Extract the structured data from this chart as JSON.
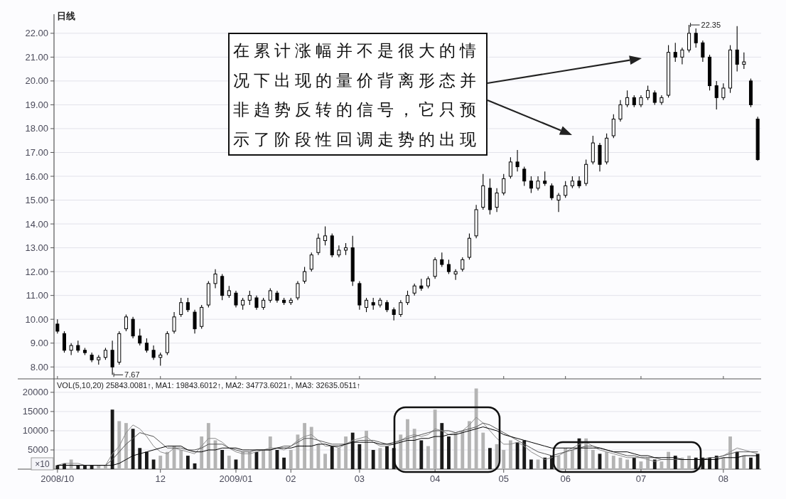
{
  "chart_data": [
    {
      "type": "candlestick",
      "title": "日线",
      "color": "#000000",
      "categories": [
        "2008/10",
        null,
        null,
        null,
        null,
        null,
        null,
        null,
        null,
        null,
        null,
        null,
        null,
        null,
        null,
        "12",
        null,
        null,
        null,
        null,
        null,
        null,
        null,
        null,
        null,
        null,
        "2009/01",
        null,
        null,
        null,
        null,
        null,
        null,
        null,
        "02",
        null,
        null,
        null,
        null,
        null,
        null,
        null,
        null,
        null,
        "03",
        null,
        null,
        null,
        null,
        null,
        null,
        null,
        null,
        null,
        null,
        "04",
        null,
        null,
        null,
        null,
        null,
        null,
        null,
        null,
        null,
        "05",
        null,
        null,
        null,
        null,
        null,
        null,
        null,
        null,
        "06",
        null,
        null,
        null,
        null,
        null,
        null,
        null,
        null,
        null,
        null,
        "07",
        null,
        null,
        null,
        null,
        null,
        null,
        null,
        null,
        null,
        null,
        null,
        "08",
        null,
        null,
        null,
        null,
        null
      ],
      "ohlc": [
        [
          9.8,
          10.0,
          9.4,
          9.5
        ],
        [
          9.4,
          9.5,
          8.6,
          8.7
        ],
        [
          8.7,
          9.0,
          8.5,
          8.9
        ],
        [
          8.9,
          9.1,
          8.6,
          8.7
        ],
        [
          8.7,
          8.8,
          8.5,
          8.6
        ],
        [
          8.5,
          8.6,
          8.2,
          8.3
        ],
        [
          8.3,
          8.5,
          8.1,
          8.4
        ],
        [
          8.4,
          8.8,
          8.3,
          8.7
        ],
        [
          8.7,
          9.1,
          7.67,
          8.0
        ],
        [
          8.2,
          9.5,
          8.1,
          9.4
        ],
        [
          9.6,
          10.2,
          9.5,
          10.1
        ],
        [
          10.0,
          10.1,
          9.2,
          9.3
        ],
        [
          9.3,
          9.6,
          8.9,
          9.0
        ],
        [
          9.0,
          9.2,
          8.6,
          8.7
        ],
        [
          8.7,
          8.9,
          8.3,
          8.4
        ],
        [
          8.4,
          8.6,
          8.05,
          8.5
        ],
        [
          8.6,
          9.5,
          8.5,
          9.4
        ],
        [
          9.5,
          10.3,
          9.4,
          10.1
        ],
        [
          10.2,
          10.9,
          10.1,
          10.7
        ],
        [
          10.7,
          10.9,
          10.3,
          10.4
        ],
        [
          10.3,
          10.4,
          9.4,
          9.6
        ],
        [
          9.7,
          10.6,
          9.6,
          10.5
        ],
        [
          10.6,
          11.6,
          10.5,
          11.5
        ],
        [
          11.5,
          12.1,
          11.3,
          11.9
        ],
        [
          11.8,
          11.9,
          10.8,
          11.0
        ],
        [
          11.0,
          11.4,
          10.9,
          11.2
        ],
        [
          11.1,
          11.2,
          10.5,
          10.6
        ],
        [
          10.6,
          10.9,
          10.4,
          10.8
        ],
        [
          10.8,
          11.2,
          10.6,
          11.0
        ],
        [
          10.9,
          11.0,
          10.4,
          10.5
        ],
        [
          10.5,
          10.9,
          10.4,
          10.8
        ],
        [
          10.8,
          11.3,
          10.7,
          11.2
        ],
        [
          11.1,
          11.2,
          10.7,
          10.8
        ],
        [
          10.8,
          10.9,
          10.6,
          10.7
        ],
        [
          10.7,
          10.9,
          10.6,
          10.8
        ],
        [
          10.9,
          11.6,
          10.8,
          11.5
        ],
        [
          11.6,
          12.2,
          11.5,
          12.0
        ],
        [
          12.1,
          12.8,
          12.0,
          12.7
        ],
        [
          12.8,
          13.6,
          12.7,
          13.4
        ],
        [
          13.3,
          13.9,
          13.1,
          13.5
        ],
        [
          13.5,
          13.6,
          12.6,
          12.7
        ],
        [
          12.7,
          13.1,
          12.6,
          12.9
        ],
        [
          12.9,
          13.2,
          12.7,
          13.0
        ],
        [
          13.0,
          13.5,
          11.4,
          11.6
        ],
        [
          11.5,
          11.6,
          10.4,
          10.6
        ],
        [
          10.5,
          10.9,
          10.3,
          10.8
        ],
        [
          10.7,
          10.9,
          10.4,
          10.6
        ],
        [
          10.6,
          10.9,
          10.5,
          10.8
        ],
        [
          10.7,
          10.8,
          10.3,
          10.4
        ],
        [
          10.4,
          10.5,
          9.95,
          10.2
        ],
        [
          10.2,
          10.8,
          10.1,
          10.7
        ],
        [
          10.7,
          11.2,
          10.6,
          11.0
        ],
        [
          11.1,
          11.5,
          11.0,
          11.4
        ],
        [
          11.4,
          11.7,
          11.2,
          11.3
        ],
        [
          11.4,
          11.8,
          11.3,
          11.7
        ],
        [
          11.8,
          12.6,
          11.7,
          12.5
        ],
        [
          12.5,
          12.8,
          12.2,
          12.3
        ],
        [
          12.3,
          12.5,
          11.9,
          12.0
        ],
        [
          11.9,
          12.1,
          11.65,
          12.0
        ],
        [
          12.1,
          12.6,
          12.0,
          12.5
        ],
        [
          12.6,
          13.6,
          12.5,
          13.4
        ],
        [
          13.5,
          14.8,
          13.4,
          14.6
        ],
        [
          14.7,
          16.1,
          14.6,
          15.6
        ],
        [
          15.5,
          15.9,
          14.4,
          14.6
        ],
        [
          14.7,
          15.5,
          14.5,
          15.3
        ],
        [
          15.3,
          16.1,
          15.2,
          15.9
        ],
        [
          16.0,
          16.8,
          15.9,
          16.6
        ],
        [
          16.6,
          17.1,
          16.2,
          16.4
        ],
        [
          16.3,
          16.4,
          15.6,
          15.8
        ],
        [
          15.8,
          16.0,
          15.3,
          15.5
        ],
        [
          15.5,
          16.0,
          15.4,
          15.8
        ],
        [
          15.8,
          16.2,
          15.6,
          15.7
        ],
        [
          15.6,
          15.7,
          15.0,
          15.1
        ],
        [
          15.0,
          15.3,
          14.5,
          15.2
        ],
        [
          15.2,
          15.8,
          15.1,
          15.6
        ],
        [
          15.6,
          16.0,
          15.5,
          15.8
        ],
        [
          15.8,
          16.0,
          15.5,
          15.6
        ],
        [
          15.7,
          16.7,
          15.6,
          16.5
        ],
        [
          16.6,
          17.7,
          16.5,
          17.4
        ],
        [
          17.3,
          17.4,
          16.2,
          16.5
        ],
        [
          16.6,
          17.8,
          16.5,
          17.6
        ],
        [
          17.7,
          18.6,
          17.6,
          18.4
        ],
        [
          18.4,
          19.2,
          18.3,
          19.0
        ],
        [
          19.0,
          19.6,
          18.9,
          19.3
        ],
        [
          19.3,
          19.4,
          18.9,
          19.0
        ],
        [
          19.0,
          19.4,
          18.9,
          19.3
        ],
        [
          19.3,
          19.8,
          19.2,
          19.6
        ],
        [
          19.5,
          19.6,
          19.0,
          19.1
        ],
        [
          19.1,
          19.4,
          19.0,
          19.3
        ],
        [
          19.4,
          21.5,
          19.3,
          21.2
        ],
        [
          21.2,
          21.6,
          20.8,
          21.0
        ],
        [
          21.0,
          21.4,
          20.7,
          21.3
        ],
        [
          21.3,
          22.35,
          21.2,
          22.0
        ],
        [
          22.0,
          22.2,
          21.4,
          21.6
        ],
        [
          21.6,
          21.7,
          20.8,
          21.0
        ],
        [
          21.0,
          21.1,
          19.6,
          19.8
        ],
        [
          19.8,
          20.0,
          18.8,
          19.3
        ],
        [
          19.3,
          19.9,
          19.2,
          19.7
        ],
        [
          19.7,
          21.5,
          19.5,
          21.3
        ],
        [
          21.3,
          22.3,
          20.4,
          20.7
        ],
        [
          20.7,
          21.2,
          20.5,
          20.8
        ],
        [
          20.0,
          20.1,
          18.9,
          19.0
        ],
        [
          18.4,
          18.5,
          16.65,
          16.7
        ]
      ],
      "ylim": [
        7.5,
        22.8
      ],
      "yticks": [
        {
          "value": 8,
          "label": "8.00"
        },
        {
          "value": 9,
          "label": "9.00"
        },
        {
          "value": 10,
          "label": "10.00"
        },
        {
          "value": 11,
          "label": "11.00"
        },
        {
          "value": 12,
          "label": "12.00"
        },
        {
          "value": 13,
          "label": "13.00"
        },
        {
          "value": 14,
          "label": "14.00"
        },
        {
          "value": 15,
          "label": "15.00"
        },
        {
          "value": 16,
          "label": "16.00"
        },
        {
          "value": 17,
          "label": "17.00"
        },
        {
          "value": 18,
          "label": "18.00"
        },
        {
          "value": 19,
          "label": "19.00"
        },
        {
          "value": 20,
          "label": "20.00"
        },
        {
          "value": 21,
          "label": "21.00"
        },
        {
          "value": 22,
          "label": "22.00"
        }
      ],
      "grid": "y",
      "tick_labels": "y",
      "annotations": [
        "7.67",
        "22.35",
        "在累计涨幅并不是很大的情况下出现的量价背离形态并非趋势反转的信号，它只预示了阶段性回调走势的出现"
      ]
    },
    {
      "type": "bar",
      "ylabel": "×10",
      "categories": [
        "2008/10",
        null,
        null,
        null,
        null,
        null,
        null,
        null,
        null,
        null,
        null,
        null,
        null,
        null,
        null,
        "12",
        null,
        null,
        null,
        null,
        null,
        null,
        null,
        null,
        null,
        null,
        "2009/01",
        null,
        null,
        null,
        null,
        null,
        null,
        null,
        "02",
        null,
        null,
        null,
        null,
        null,
        null,
        null,
        null,
        null,
        "03",
        null,
        null,
        null,
        null,
        null,
        null,
        null,
        null,
        null,
        null,
        "04",
        null,
        null,
        null,
        null,
        null,
        null,
        null,
        null,
        null,
        "05",
        null,
        null,
        null,
        null,
        null,
        null,
        null,
        null,
        "06",
        null,
        null,
        null,
        null,
        null,
        null,
        null,
        null,
        null,
        null,
        "07",
        null,
        null,
        null,
        null,
        null,
        null,
        null,
        null,
        null,
        null,
        null,
        "08",
        null,
        null,
        null,
        null,
        null
      ],
      "series": [
        {
          "type": "bar",
          "values": [
            1000,
            1500,
            2500,
            1000,
            1000,
            1000,
            1000,
            1000,
            15500,
            12500,
            12000,
            10500,
            5500,
            4500,
            2500,
            3500,
            4500,
            6000,
            5000,
            3500,
            1500,
            8500,
            12000,
            7500,
            5000,
            3500,
            2500,
            4500,
            4500,
            4500,
            5000,
            8500,
            5000,
            3000,
            5000,
            9000,
            12000,
            11000,
            6500,
            4000,
            6000,
            5500,
            8500,
            9500,
            6500,
            10000,
            5000,
            5500,
            6000,
            5500,
            9000,
            13000,
            10500,
            7500,
            6000,
            15500,
            12000,
            8500,
            9500,
            10000,
            12500,
            21000,
            9500,
            5500,
            6500,
            5000,
            7500,
            7000,
            7500,
            2500,
            2500,
            3000,
            3500,
            3500,
            5500,
            5000,
            8000,
            8000,
            5000,
            4000,
            4500,
            3500,
            3000,
            2500,
            3000,
            2000,
            3000,
            2500,
            2000,
            4500,
            3500,
            3000,
            3500,
            3000,
            3000,
            3000,
            3500,
            3000,
            8500,
            4500,
            3500,
            3000,
            4000
          ],
          "colors": [
            "#1a1a1a",
            "#1a1a1a",
            "#b4b4b4",
            "#1a1a1a",
            "#1a1a1a",
            "#1a1a1a",
            "#b4b4b4",
            "#b4b4b4",
            "#1a1a1a",
            "#b4b4b4",
            "#b4b4b4",
            "#1a1a1a",
            "#1a1a1a",
            "#1a1a1a",
            "#1a1a1a",
            "#b4b4b4",
            "#b4b4b4",
            "#b4b4b4",
            "#b4b4b4",
            "#1a1a1a",
            "#1a1a1a",
            "#b4b4b4",
            "#b4b4b4",
            "#b4b4b4",
            "#1a1a1a",
            "#b4b4b4",
            "#1a1a1a",
            "#b4b4b4",
            "#b4b4b4",
            "#1a1a1a",
            "#b4b4b4",
            "#b4b4b4",
            "#1a1a1a",
            "#1a1a1a",
            "#b4b4b4",
            "#b4b4b4",
            "#b4b4b4",
            "#b4b4b4",
            "#b4b4b4",
            "#b4b4b4",
            "#1a1a1a",
            "#b4b4b4",
            "#b4b4b4",
            "#1a1a1a",
            "#1a1a1a",
            "#b4b4b4",
            "#1a1a1a",
            "#b4b4b4",
            "#1a1a1a",
            "#1a1a1a",
            "#b4b4b4",
            "#b4b4b4",
            "#b4b4b4",
            "#1a1a1a",
            "#b4b4b4",
            "#b4b4b4",
            "#1a1a1a",
            "#1a1a1a",
            "#b4b4b4",
            "#b4b4b4",
            "#b4b4b4",
            "#b4b4b4",
            "#b4b4b4",
            "#1a1a1a",
            "#b4b4b4",
            "#b4b4b4",
            "#b4b4b4",
            "#1a1a1a",
            "#1a1a1a",
            "#1a1a1a",
            "#b4b4b4",
            "#1a1a1a",
            "#1a1a1a",
            "#b4b4b4",
            "#b4b4b4",
            "#b4b4b4",
            "#1a1a1a",
            "#b4b4b4",
            "#b4b4b4",
            "#1a1a1a",
            "#b4b4b4",
            "#b4b4b4",
            "#b4b4b4",
            "#b4b4b4",
            "#1a1a1a",
            "#b4b4b4",
            "#b4b4b4",
            "#1a1a1a",
            "#b4b4b4",
            "#b4b4b4",
            "#1a1a1a",
            "#b4b4b4",
            "#b4b4b4",
            "#1a1a1a",
            "#1a1a1a",
            "#1a1a1a",
            "#1a1a1a",
            "#b4b4b4",
            "#b4b4b4",
            "#1a1a1a",
            "#b4b4b4",
            "#1a1a1a",
            "#1a1a1a"
          ]
        },
        {
          "type": "line",
          "color": "#8c8c8c",
          "values": [
            1000,
            1500,
            1500,
            1500,
            1000,
            1000,
            1000,
            1000,
            4000,
            6000,
            9500,
            11500,
            10500,
            8500,
            6000,
            4500,
            4000,
            5500,
            5000,
            4500,
            4000,
            6000,
            8000,
            8000,
            7000,
            5500,
            4500,
            4000,
            4000,
            4500,
            5000,
            5500,
            5500,
            5000,
            6000,
            7500,
            8500,
            9000,
            7500,
            6000,
            6000,
            5500,
            6500,
            7500,
            8000,
            8500,
            7000,
            6000,
            6000,
            6500,
            7500,
            8500,
            9000,
            8500,
            9000,
            10500,
            10000,
            9000,
            9500,
            10000,
            11500,
            13500,
            12000,
            10000,
            8000,
            6500,
            6500,
            7000,
            6000,
            4500,
            3500,
            2500,
            3000,
            3500,
            4500,
            5500,
            6500,
            7000,
            6000,
            5000,
            4500,
            4000,
            3500,
            3000,
            3000,
            3000,
            2500,
            2000,
            2500,
            2500,
            2500,
            2500,
            2500,
            2500,
            2500,
            3000,
            3000,
            3500,
            4500,
            5500,
            5000,
            4500,
            4000
          ]
        },
        {
          "type": "line",
          "color": "#555555",
          "values": [
            1000,
            1000,
            1000,
            1000,
            1000,
            1000,
            1000,
            1000,
            2500,
            4500,
            6500,
            8000,
            9500,
            9000,
            8500,
            7000,
            5500,
            5500,
            5500,
            5000,
            5000,
            5500,
            6500,
            6500,
            6500,
            5500,
            5000,
            4500,
            4500,
            5000,
            5000,
            5000,
            5500,
            6000,
            6000,
            7000,
            8000,
            8000,
            7500,
            7000,
            6500,
            6500,
            6500,
            7000,
            7500,
            7500,
            7500,
            7000,
            6500,
            7000,
            7500,
            8000,
            8500,
            9000,
            9500,
            10000,
            10000,
            10000,
            9500,
            10000,
            10500,
            11000,
            12000,
            11500,
            10500,
            9500,
            8500,
            7500,
            6500,
            5500,
            4500,
            4000,
            3500,
            4000,
            4500,
            5000,
            5500,
            6000,
            6000,
            5500,
            5000,
            4500,
            4000,
            3500,
            3500,
            3000,
            3000,
            3000,
            2500,
            2500,
            2500,
            2500,
            2500,
            2500,
            2500,
            3000,
            3000,
            3500,
            4000,
            4500,
            4500,
            4500,
            4500
          ]
        },
        {
          "type": "line",
          "color": "#000000",
          "values": [
            1000,
            1000,
            1000,
            1000,
            1000,
            1000,
            1000,
            1000,
            1000,
            1500,
            2500,
            3500,
            4000,
            4500,
            5000,
            5500,
            6000,
            6000,
            6000,
            5000,
            4500,
            4500,
            5000,
            5000,
            5500,
            5500,
            5500,
            5000,
            5000,
            5000,
            5000,
            5000,
            5500,
            5500,
            5500,
            6000,
            6000,
            6000,
            6500,
            6500,
            6000,
            6000,
            6500,
            7000,
            7000,
            7000,
            7000,
            6500,
            6500,
            6500,
            7000,
            7500,
            7500,
            8000,
            8000,
            8500,
            8500,
            9000,
            9000,
            9500,
            10000,
            10500,
            11000,
            10500,
            10000,
            9000,
            8500,
            8000,
            7500,
            7000,
            6500,
            6000,
            5500,
            5500,
            5500,
            5500,
            5500,
            5500,
            5500,
            5500,
            5000,
            4500,
            4500,
            4500,
            4000,
            3500,
            3500,
            3000,
            3000,
            3000,
            3000,
            2500,
            2500,
            2500,
            2500,
            2500,
            2500,
            3000,
            3000,
            3000,
            3500,
            3500,
            3500
          ]
        }
      ],
      "ylim": [
        0,
        23500
      ],
      "yticks": [
        5000,
        10000,
        15000,
        20000
      ],
      "grid": "y",
      "annotations": [
        "VOL(5,10,20) 25843.0081↑, MA1: 19843.6012↑, MA2: 34773.6021↑, MA3: 32635.0511↑"
      ]
    }
  ]
}
